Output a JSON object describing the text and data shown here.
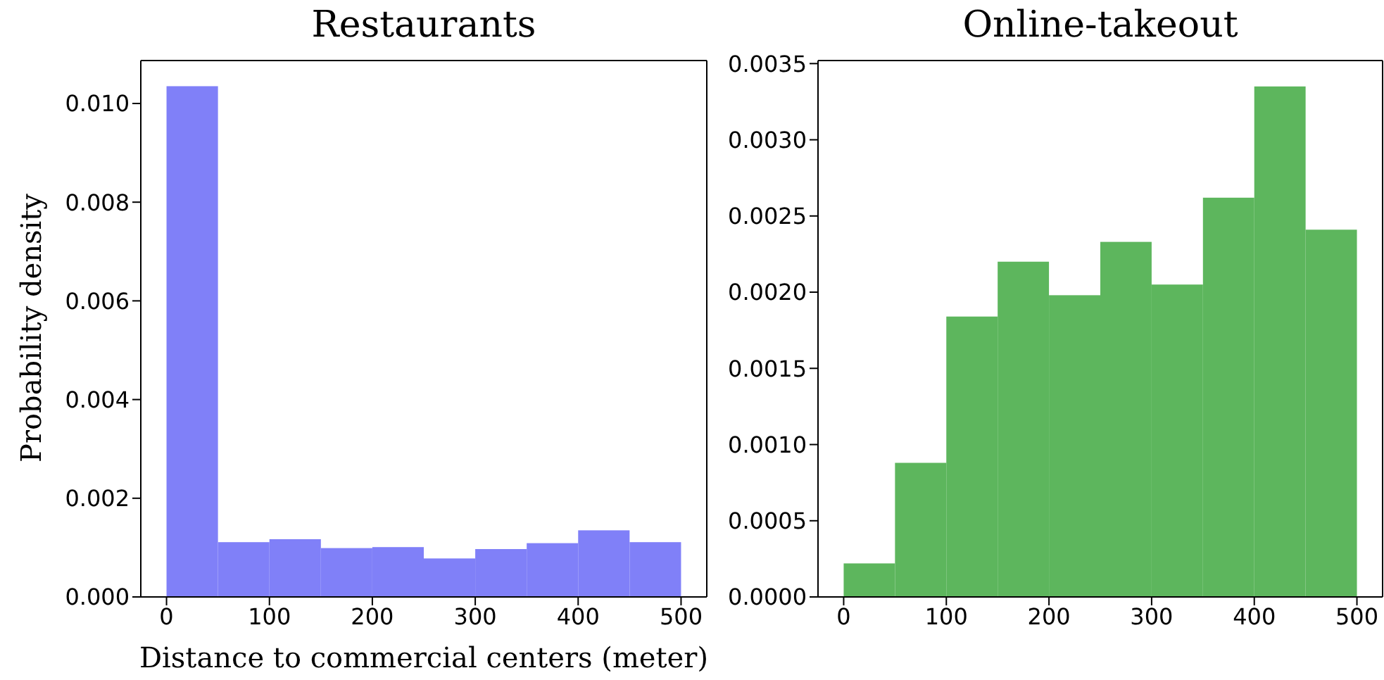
{
  "chart_data": [
    {
      "type": "histogram",
      "title": "Restaurants",
      "xlabel": "Distance to commercial centers (meter)",
      "ylabel": "Probability density",
      "bins": [
        0,
        50,
        100,
        150,
        200,
        250,
        300,
        350,
        400,
        450,
        500
      ],
      "values": [
        0.01035,
        0.00111,
        0.00117,
        0.00099,
        0.00101,
        0.00078,
        0.00097,
        0.00109,
        0.00135,
        0.00111
      ],
      "color": "#8080f8",
      "xlim": [
        -25,
        525
      ],
      "xticks": [
        0,
        100,
        200,
        300,
        400,
        500
      ],
      "ylim": [
        0,
        0.01087
      ],
      "yticks": [
        {
          "value": 0,
          "label": "0.000"
        },
        0.002,
        0.004,
        0.006,
        0.008,
        {
          "value": 0.01,
          "label": "0.010"
        }
      ]
    },
    {
      "type": "histogram",
      "title": "Online-takeout",
      "bins": [
        0,
        50,
        100,
        150,
        200,
        250,
        300,
        350,
        400,
        450,
        500
      ],
      "values": [
        0.00022,
        0.00088,
        0.00184,
        0.0022,
        0.00198,
        0.00233,
        0.00205,
        0.00262,
        0.00335,
        0.00241
      ],
      "color": "#5db65d",
      "xlim": [
        -25,
        525
      ],
      "xticks": [
        0,
        100,
        200,
        300,
        400,
        500
      ],
      "ylim": [
        0,
        0.00352
      ],
      "yticks": [
        {
          "value": 0,
          "label": "0.0000"
        },
        0.0005,
        {
          "value": 0.001,
          "label": "0.0010"
        },
        0.0015,
        {
          "value": 0.002,
          "label": "0.0020"
        },
        0.0025,
        {
          "value": 0.003,
          "label": "0.0030"
        },
        0.0035
      ]
    }
  ]
}
